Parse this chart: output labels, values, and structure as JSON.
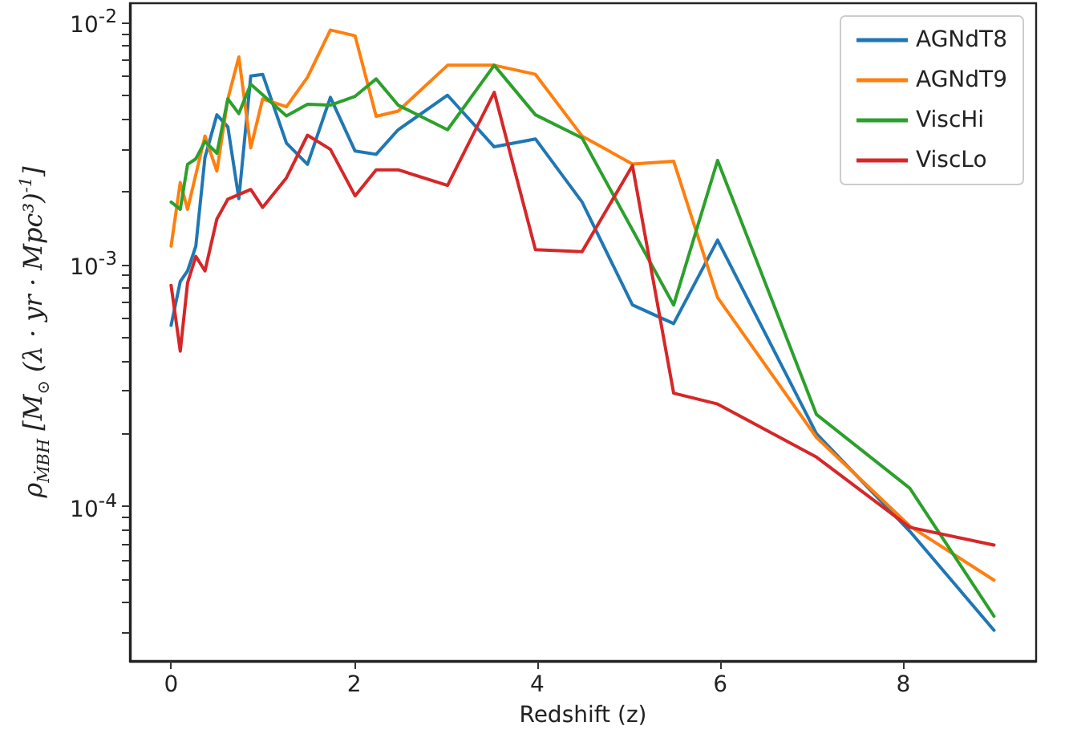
{
  "chart_data": {
    "type": "line",
    "xlabel": "Redshift (z)",
    "ylabel": "ρ$_{ṀBH}$ [M$_{⊙}$ (λ · yr · Mpc³)$^{-1}$]",
    "log": "y",
    "grid": false,
    "legend": "top right",
    "marker": "none",
    "line_style": "solid",
    "xlim": [
      -0.45,
      9.45
    ],
    "xticks": [
      0,
      2,
      4,
      6,
      8
    ],
    "ylim": [
      2.3e-05,
      0.012
    ],
    "yticks": [
      {
        "value": 3e-05,
        "label": null
      },
      {
        "value": 4e-05,
        "label": null
      },
      {
        "value": 5e-05,
        "label": null
      },
      {
        "value": 6e-05,
        "label": null
      },
      {
        "value": 7e-05,
        "label": null
      },
      {
        "value": 8e-05,
        "label": null
      },
      {
        "value": 9e-05,
        "label": null
      },
      {
        "value": 0.0001,
        "label": "10$^{-4}$"
      },
      {
        "value": 0.0002,
        "label": null
      },
      {
        "value": 0.0003,
        "label": null
      },
      {
        "value": 0.0004,
        "label": null
      },
      {
        "value": 0.0005,
        "label": null
      },
      {
        "value": 0.0006,
        "label": null
      },
      {
        "value": 0.0007,
        "label": null
      },
      {
        "value": 0.0008,
        "label": null
      },
      {
        "value": 0.0009,
        "label": null
      },
      {
        "value": 0.001,
        "label": "10$^{-3}$"
      },
      {
        "value": 0.002,
        "label": null
      },
      {
        "value": 0.003,
        "label": null
      },
      {
        "value": 0.004,
        "label": null
      },
      {
        "value": 0.005,
        "label": null
      },
      {
        "value": 0.006,
        "label": null
      },
      {
        "value": 0.007,
        "label": null
      },
      {
        "value": 0.008,
        "label": null
      },
      {
        "value": 0.009,
        "label": null
      },
      {
        "value": 0.01,
        "label": "10$^{-2}$"
      }
    ],
    "series": [
      {
        "name": "AGNdT8",
        "color": "#1f77b4",
        "x": [
          0,
          0.1,
          0.18,
          0.27,
          0.37,
          0.5,
          0.62,
          0.74,
          0.87,
          1.0,
          1.26,
          1.49,
          1.74,
          2.01,
          2.24,
          2.48,
          3.02,
          3.53,
          3.98,
          4.49,
          5.04,
          5.49,
          5.97,
          7.05,
          8.07,
          8.99
        ],
        "values": [
          0.00056,
          0.00085,
          0.00094,
          0.00119,
          0.00277,
          0.00415,
          0.0037,
          0.00187,
          0.006,
          0.0061,
          0.00317,
          0.00259,
          0.0049,
          0.00294,
          0.00285,
          0.0036,
          0.005,
          0.00306,
          0.0033,
          0.00181,
          0.00068,
          0.00057,
          0.00126,
          0.0002,
          7.9e-05,
          3.08e-05
        ]
      },
      {
        "name": "AGNdT9",
        "color": "#ff7f0e",
        "x": [
          0,
          0.1,
          0.18,
          0.37,
          0.5,
          0.62,
          0.74,
          0.87,
          1.0,
          1.26,
          1.49,
          1.74,
          2.01,
          2.24,
          2.48,
          3.02,
          3.53,
          3.98,
          4.49,
          5.04,
          5.49,
          5.97,
          7.05,
          8.07,
          8.99
        ],
        "values": [
          0.00119,
          0.00218,
          0.00169,
          0.00339,
          0.00243,
          0.00483,
          0.0072,
          0.00303,
          0.00483,
          0.00448,
          0.00593,
          0.0093,
          0.0088,
          0.00409,
          0.0043,
          0.00665,
          0.00665,
          0.0061,
          0.00339,
          0.0026,
          0.00267,
          0.00073,
          0.000193,
          8.3e-05,
          4.96e-05
        ]
      },
      {
        "name": "ViscHi",
        "color": "#2ca02c",
        "x": [
          0,
          0.1,
          0.18,
          0.27,
          0.37,
          0.5,
          0.62,
          0.74,
          0.87,
          1.26,
          1.49,
          1.74,
          2.01,
          2.24,
          2.48,
          3.02,
          3.53,
          3.98,
          4.49,
          5.49,
          5.97,
          7.05,
          8.07,
          8.99
        ],
        "values": [
          0.00181,
          0.00169,
          0.00259,
          0.00273,
          0.00322,
          0.00288,
          0.00483,
          0.0042,
          0.00555,
          0.00411,
          0.00459,
          0.00455,
          0.00495,
          0.00584,
          0.00455,
          0.0036,
          0.00665,
          0.00415,
          0.00333,
          0.00068,
          0.00269,
          0.00024,
          0.000119,
          3.52e-05
        ]
      },
      {
        "name": "ViscLo",
        "color": "#d62728",
        "x": [
          0,
          0.1,
          0.18,
          0.27,
          0.37,
          0.5,
          0.62,
          0.87,
          1.0,
          1.26,
          1.49,
          1.74,
          2.01,
          2.24,
          2.48,
          3.02,
          3.53,
          3.98,
          4.49,
          5.04,
          5.49,
          5.97,
          7.05,
          8.07,
          8.99
        ],
        "values": [
          0.00082,
          0.000438,
          0.00084,
          0.00108,
          0.00094,
          0.00154,
          0.00186,
          0.00204,
          0.00172,
          0.00228,
          0.00342,
          0.00299,
          0.00192,
          0.00246,
          0.00246,
          0.00212,
          0.00514,
          0.00115,
          0.00113,
          0.00256,
          0.000294,
          0.000265,
          0.00016,
          8.2e-05,
          6.93e-05
        ]
      }
    ]
  }
}
